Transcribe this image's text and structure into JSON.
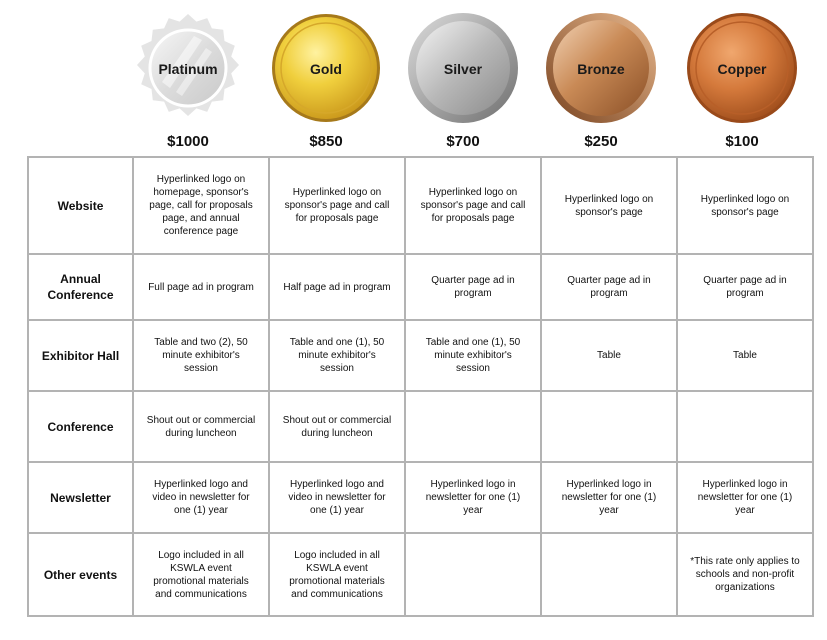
{
  "tiers": [
    {
      "name": "Platinum",
      "price": "$1000"
    },
    {
      "name": "Gold",
      "price": "$850"
    },
    {
      "name": "Silver",
      "price": "$700"
    },
    {
      "name": "Bronze",
      "price": "$250"
    },
    {
      "name": "Copper",
      "price": "$100"
    }
  ],
  "rows": [
    {
      "label": "Website",
      "cells": [
        "Hyperlinked logo on homepage, sponsor's page, call for proposals page, and annual conference page",
        "Hyperlinked logo on sponsor's page and call for proposals page",
        "Hyperlinked logo on sponsor's page and call for proposals page",
        "Hyperlinked logo on sponsor's page",
        "Hyperlinked logo on sponsor's page"
      ]
    },
    {
      "label": "Annual Conference",
      "cells": [
        "Full page ad in program",
        "Half page ad in program",
        "Quarter page ad in program",
        "Quarter page ad in program",
        "Quarter page ad in program"
      ]
    },
    {
      "label": "Exhibitor Hall",
      "cells": [
        "Table and two (2), 50 minute exhibitor's session",
        "Table and one (1), 50 minute exhibitor's session",
        "Table and one (1), 50 minute exhibitor's session",
        "Table",
        "Table"
      ]
    },
    {
      "label": "Conference",
      "cells": [
        "Shout out or commercial during luncheon",
        "Shout out or commercial during luncheon",
        "",
        "",
        ""
      ]
    },
    {
      "label": "Newsletter",
      "cells": [
        "Hyperlinked logo and video in newsletter for one (1) year",
        "Hyperlinked logo and video in newsletter for one (1) year",
        "Hyperlinked logo in newsletter for one (1) year",
        "Hyperlinked logo in newsletter for one (1) year",
        "Hyperlinked logo in newsletter for one (1) year"
      ]
    },
    {
      "label": "Other events",
      "cells": [
        "Logo included in all KSWLA event promotional materials and communications",
        "Logo included in all KSWLA event promotional materials and communications",
        "",
        "",
        "*This rate only applies to schools and non-profit organizations"
      ]
    }
  ],
  "colors": {
    "platinum": "#e3e3e3",
    "gold": "#e9c233",
    "silver": "#b9b9b9",
    "bronze": "#c98a56",
    "copper": "#d57a3c",
    "grid_border": "#b3b3b3"
  }
}
